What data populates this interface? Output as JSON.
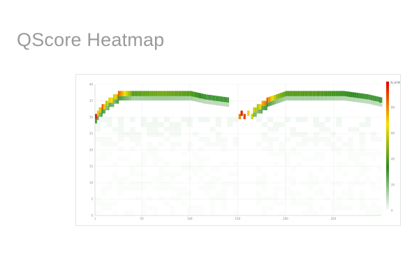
{
  "page": {
    "title": "QScore Heatmap"
  },
  "chart_data": {
    "type": "heatmap",
    "title": "",
    "xlabel": "",
    "ylabel": "",
    "xlim": [
      1,
      300
    ],
    "ylim": [
      0,
      40
    ],
    "x_ticks": [
      "1",
      "50",
      "100",
      "150",
      "200",
      "250"
    ],
    "y_ticks": [
      "0",
      "5",
      "10",
      "15",
      "20",
      "25",
      "30",
      "35",
      "40"
    ],
    "legend": {
      "title": "% of Max",
      "placement": "right",
      "ticks": [
        "0",
        "20",
        "40",
        "60",
        "80"
      ],
      "colors": [
        "#ffffff",
        "#2e8b22",
        "#f5e100",
        "#e00000"
      ]
    },
    "grid": true,
    "peak_band": [
      {
        "x": 1,
        "q": 30,
        "pct": 100
      },
      {
        "x": 3,
        "q": 31,
        "pct": 70
      },
      {
        "x": 5,
        "q": 32,
        "pct": 60
      },
      {
        "x": 8,
        "q": 33,
        "pct": 85
      },
      {
        "x": 12,
        "q": 34,
        "pct": 55
      },
      {
        "x": 15,
        "q": 35,
        "pct": 70
      },
      {
        "x": 20,
        "q": 36,
        "pct": 60
      },
      {
        "x": 25,
        "q": 37,
        "pct": 85
      },
      {
        "x": 40,
        "q": 37,
        "pct": 40
      },
      {
        "x": 70,
        "q": 37,
        "pct": 45
      },
      {
        "x": 100,
        "q": 37,
        "pct": 40
      },
      {
        "x": 115,
        "q": 36,
        "pct": 30
      },
      {
        "x": 140,
        "q": 35,
        "pct": 30
      },
      {
        "x": 151,
        "q": 30,
        "pct": 80
      },
      {
        "x": 153,
        "q": 31,
        "pct": 95
      },
      {
        "x": 156,
        "q": 30,
        "pct": 90
      },
      {
        "x": 160,
        "q": 31,
        "pct": 70
      },
      {
        "x": 164,
        "q": 30,
        "pct": 60
      },
      {
        "x": 166,
        "q": 32,
        "pct": 60
      },
      {
        "x": 170,
        "q": 33,
        "pct": 55
      },
      {
        "x": 175,
        "q": 34,
        "pct": 75
      },
      {
        "x": 180,
        "q": 35,
        "pct": 85
      },
      {
        "x": 190,
        "q": 36,
        "pct": 50
      },
      {
        "x": 200,
        "q": 37,
        "pct": 40
      },
      {
        "x": 230,
        "q": 37,
        "pct": 40
      },
      {
        "x": 260,
        "q": 37,
        "pct": 35
      },
      {
        "x": 285,
        "q": 36,
        "pct": 30
      },
      {
        "x": 300,
        "q": 35,
        "pct": 30
      }
    ]
  }
}
